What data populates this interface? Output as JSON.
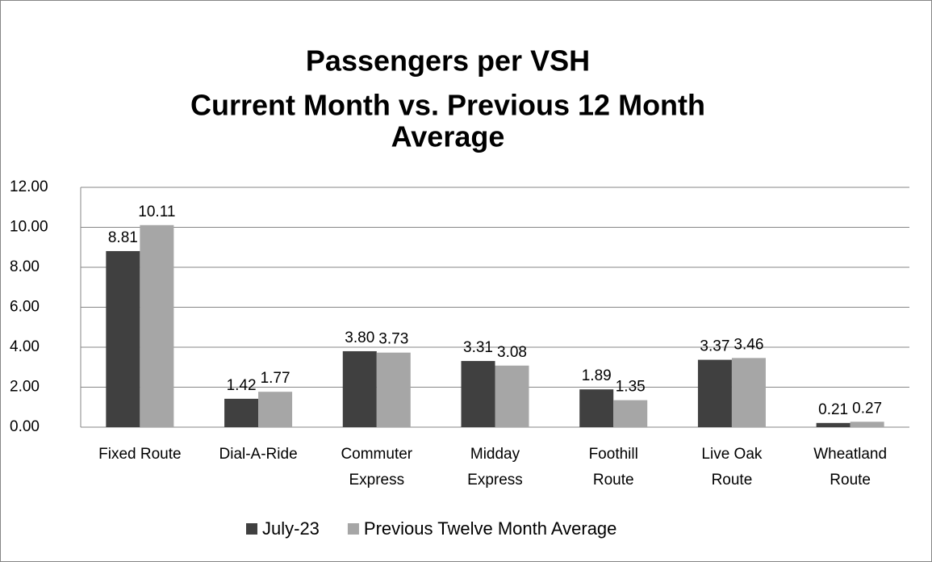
{
  "chart_data": {
    "type": "bar",
    "title": [
      "Passengers per VSH",
      "Current Month vs. Previous 12 Month",
      "Average"
    ],
    "categories": [
      [
        "Fixed Route"
      ],
      [
        "Dial-A-Ride"
      ],
      [
        "Commuter",
        "Express"
      ],
      [
        "Midday",
        "Express"
      ],
      [
        "Foothill",
        "Route"
      ],
      [
        "Live Oak",
        "Route"
      ],
      [
        "Wheatland",
        "Route"
      ]
    ],
    "series": [
      {
        "name": "July-23",
        "color": "#404040",
        "values": [
          8.81,
          1.42,
          3.8,
          3.31,
          1.89,
          3.37,
          0.21
        ],
        "value_labels": [
          "8.81",
          "1.42",
          "3.80",
          "3.31",
          "1.89",
          "3.37",
          "0.21"
        ]
      },
      {
        "name": "Previous Twelve Month Average",
        "color": "#a6a6a6",
        "values": [
          10.11,
          1.77,
          3.73,
          3.08,
          1.35,
          3.46,
          0.27
        ],
        "value_labels": [
          "10.11",
          "1.77",
          "3.73",
          "3.08",
          "1.35",
          "3.46",
          "0.27"
        ]
      }
    ],
    "ylim": [
      0,
      12
    ],
    "yticks": [
      {
        "value": 0,
        "label": "0.00"
      },
      {
        "value": 2,
        "label": "2.00"
      },
      {
        "value": 4,
        "label": "4.00"
      },
      {
        "value": 6,
        "label": "6.00"
      },
      {
        "value": 8,
        "label": "8.00"
      },
      {
        "value": 10,
        "label": "10.00"
      },
      {
        "value": 12,
        "label": "12.00"
      }
    ],
    "grid": true,
    "legend": "bottom"
  }
}
